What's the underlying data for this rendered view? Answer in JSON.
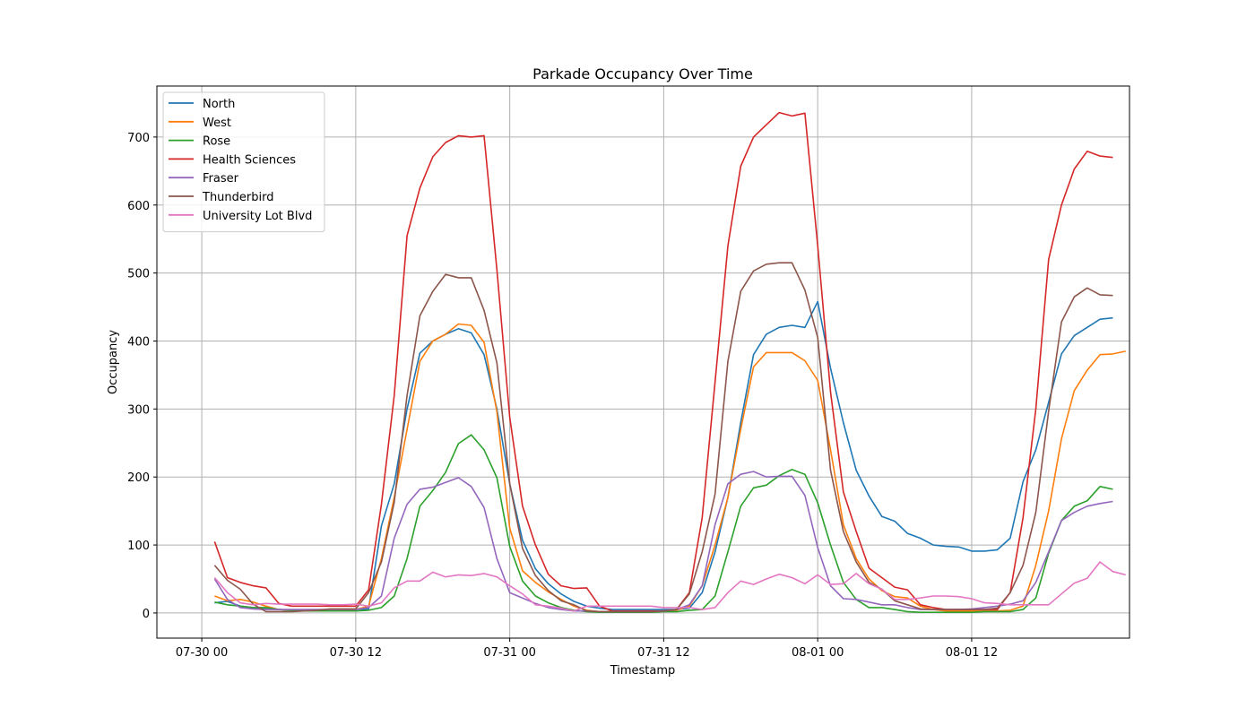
{
  "chart_data": {
    "type": "line",
    "title": "Parkade Occupancy Over Time",
    "xlabel": "Timestamp",
    "ylabel": "Occupancy",
    "x_start": "07-30 01",
    "x_step_hours": 1,
    "x_ticks": [
      "07-30 00",
      "07-30 12",
      "07-31 00",
      "07-31 12",
      "08-01 00",
      "08-01 12"
    ],
    "x_ticks_hours": [
      0,
      12,
      24,
      36,
      48,
      60
    ],
    "x_range_hours": [
      -3.5,
      72.3
    ],
    "ylim": [
      -37,
      775
    ],
    "y_ticks": [
      0,
      100,
      200,
      300,
      400,
      500,
      600,
      700
    ],
    "grid": true,
    "legend": "upper-left",
    "series": [
      {
        "name": "North",
        "color": "#1f77b4",
        "values": [
          15,
          17,
          10,
          8,
          6,
          5,
          4,
          4,
          3,
          3,
          4,
          5,
          6,
          128,
          190,
          300,
          382,
          400,
          410,
          418,
          412,
          380,
          300,
          190,
          107,
          65,
          43,
          28,
          17,
          10,
          7,
          5,
          5,
          5,
          5,
          5,
          5,
          7,
          30,
          90,
          170,
          280,
          380,
          410,
          420,
          423,
          420,
          458,
          360,
          280,
          210,
          172,
          142,
          135,
          117,
          110,
          100,
          98,
          97,
          91,
          91,
          93,
          110,
          193,
          240,
          310,
          381,
          408,
          420,
          432,
          434
        ]
      },
      {
        "name": "West",
        "color": "#ff7f0e",
        "values": [
          25,
          18,
          20,
          16,
          10,
          5,
          4,
          4,
          3,
          3,
          4,
          5,
          10,
          80,
          170,
          270,
          370,
          400,
          410,
          425,
          423,
          398,
          296,
          125,
          62,
          45,
          31,
          20,
          10,
          4,
          2,
          2,
          2,
          2,
          2,
          3,
          4,
          10,
          40,
          100,
          170,
          270,
          362,
          383,
          383,
          383,
          371,
          342,
          240,
          130,
          80,
          50,
          33,
          24,
          22,
          10,
          5,
          3,
          3,
          3,
          3,
          3,
          4,
          10,
          70,
          150,
          256,
          327,
          357,
          380,
          381,
          385
        ]
      },
      {
        "name": "Rose",
        "color": "#2ca02c",
        "values": [
          16,
          12,
          10,
          8,
          8,
          5,
          4,
          3,
          3,
          3,
          3,
          3,
          4,
          8,
          25,
          80,
          157,
          180,
          207,
          249,
          262,
          240,
          199,
          98,
          47,
          25,
          15,
          8,
          4,
          2,
          1,
          1,
          1,
          1,
          1,
          2,
          2,
          4,
          5,
          25,
          90,
          157,
          184,
          188,
          202,
          211,
          204,
          162,
          100,
          45,
          20,
          8,
          8,
          5,
          2,
          1,
          1,
          1,
          1,
          1,
          2,
          2,
          2,
          5,
          22,
          88,
          136,
          157,
          165,
          186,
          182
        ]
      },
      {
        "name": "Health Sciences",
        "color": "#d62728",
        "values": [
          105,
          52,
          45,
          40,
          37,
          14,
          10,
          10,
          10,
          10,
          10,
          10,
          34,
          160,
          320,
          555,
          625,
          671,
          692,
          702,
          700,
          702,
          505,
          288,
          157,
          100,
          57,
          40,
          36,
          37,
          10,
          3,
          3,
          3,
          3,
          3,
          5,
          30,
          140,
          340,
          540,
          657,
          700,
          718,
          736,
          731,
          735,
          540,
          325,
          178,
          120,
          66,
          52,
          38,
          34,
          12,
          8,
          5,
          5,
          5,
          5,
          5,
          30,
          140,
          300,
          520,
          600,
          653,
          679,
          672,
          670
        ]
      },
      {
        "name": "Fraser",
        "color": "#9467bd",
        "values": [
          50,
          20,
          8,
          6,
          5,
          5,
          5,
          5,
          5,
          5,
          5,
          5,
          8,
          25,
          110,
          160,
          182,
          185,
          192,
          199,
          186,
          155,
          80,
          30,
          22,
          14,
          8,
          5,
          3,
          3,
          2,
          2,
          2,
          2,
          2,
          3,
          5,
          12,
          40,
          130,
          190,
          204,
          208,
          200,
          201,
          201,
          173,
          96,
          40,
          21,
          20,
          16,
          12,
          12,
          8,
          5,
          5,
          5,
          5,
          6,
          8,
          10,
          13,
          18,
          45,
          90,
          136,
          148,
          157,
          161,
          164
        ]
      },
      {
        "name": "Thunderbird",
        "color": "#8c564b",
        "values": [
          70,
          48,
          35,
          13,
          2,
          2,
          2,
          3,
          4,
          6,
          6,
          6,
          30,
          75,
          163,
          320,
          437,
          473,
          498,
          493,
          493,
          445,
          368,
          190,
          95,
          55,
          33,
          18,
          12,
          3,
          2,
          2,
          2,
          2,
          2,
          3,
          5,
          28,
          90,
          175,
          370,
          473,
          503,
          513,
          515,
          515,
          475,
          405,
          210,
          120,
          75,
          45,
          35,
          18,
          12,
          6,
          5,
          5,
          5,
          5,
          5,
          7,
          30,
          70,
          148,
          297,
          428,
          465,
          478,
          468,
          467
        ]
      },
      {
        "name": "University Lot Blvd",
        "color": "#e377c2",
        "values": [
          52,
          30,
          15,
          12,
          14,
          13,
          13,
          13,
          13,
          12,
          12,
          13,
          10,
          15,
          37,
          47,
          47,
          60,
          53,
          56,
          55,
          58,
          53,
          40,
          28,
          12,
          10,
          7,
          3,
          10,
          10,
          10,
          10,
          10,
          10,
          8,
          8,
          8,
          5,
          8,
          30,
          47,
          42,
          50,
          57,
          52,
          43,
          56,
          42,
          43,
          58,
          43,
          35,
          20,
          20,
          22,
          25,
          25,
          24,
          21,
          15,
          14,
          12,
          12,
          12,
          12,
          28,
          44,
          51,
          75,
          61,
          56
        ]
      }
    ]
  }
}
